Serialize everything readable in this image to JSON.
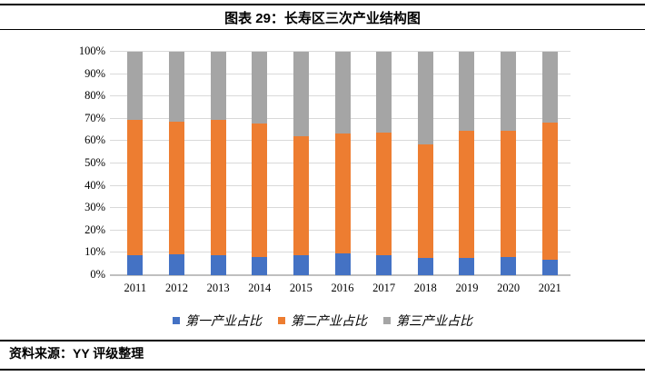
{
  "header": {
    "title": "图表 29：长寿区三次产业结构图"
  },
  "footer": {
    "source": "资料来源：YY 评级整理"
  },
  "chart_data": {
    "type": "bar",
    "subtype": "stacked-100-percent",
    "title": "长寿区三次产业结构图",
    "xlabel": "",
    "ylabel": "",
    "ylim": [
      0,
      100
    ],
    "grid": true,
    "legend_position": "bottom",
    "categories": [
      "2011",
      "2012",
      "2013",
      "2014",
      "2015",
      "2016",
      "2017",
      "2018",
      "2019",
      "2020",
      "2021"
    ],
    "series": [
      {
        "name": "第一产业占比",
        "color": "#4472C4",
        "values": [
          8.8,
          9.2,
          9.1,
          8.3,
          8.8,
          9.6,
          8.9,
          7.6,
          7.7,
          8.3,
          7.0
        ]
      },
      {
        "name": "第二产业占比",
        "color": "#ED7D31",
        "values": [
          60.7,
          59.6,
          60.5,
          59.7,
          53.5,
          53.7,
          55.0,
          51.0,
          57.1,
          56.5,
          61.3
        ]
      },
      {
        "name": "第三产业占比",
        "color": "#A5A5A5",
        "values": [
          30.5,
          31.2,
          30.4,
          32.0,
          37.7,
          36.7,
          36.1,
          41.4,
          35.2,
          35.2,
          31.7
        ]
      }
    ],
    "yticks": [
      "0%",
      "10%",
      "20%",
      "30%",
      "40%",
      "50%",
      "60%",
      "70%",
      "80%",
      "90%",
      "100%"
    ]
  },
  "colors": {
    "gridline": "#D9D9D9",
    "axis_line": "#BFBFBF",
    "rule": "#000000"
  }
}
